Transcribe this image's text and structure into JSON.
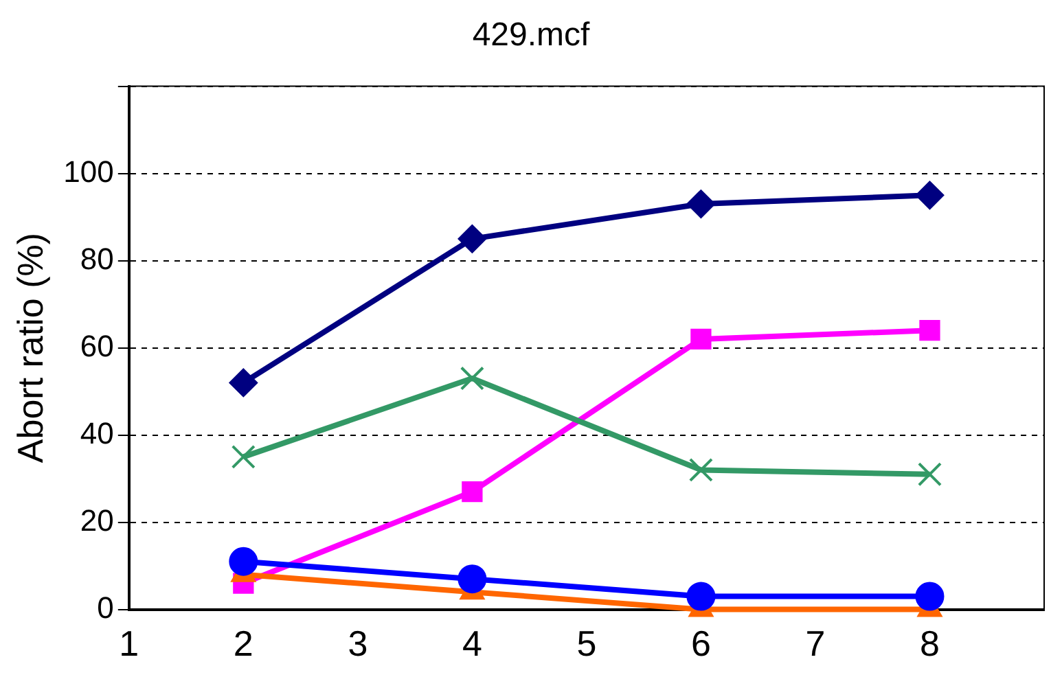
{
  "chart_data": {
    "type": "line",
    "title": "429.mcf",
    "ylabel": "Abort ratio (%)",
    "x": [
      2,
      4,
      6,
      8
    ],
    "xlim": [
      1,
      9
    ],
    "xticks": [
      1,
      2,
      3,
      4,
      5,
      6,
      7,
      8,
      {
        "value": 9,
        "label": null
      }
    ],
    "ylim": [
      0,
      120
    ],
    "yticks": [
      0,
      20,
      40,
      60,
      80,
      100,
      {
        "value": 120,
        "label": null
      }
    ],
    "grid": "y",
    "legend": false,
    "series": [
      {
        "color": "#000080",
        "marker": "diamond",
        "values": [
          52,
          85,
          93,
          95
        ]
      },
      {
        "color": "#ff00ff",
        "marker": "square",
        "values": [
          6,
          27,
          62,
          64
        ]
      },
      {
        "color": "#339966",
        "marker": "cross",
        "values": [
          35,
          53,
          32,
          31
        ]
      },
      {
        "color": "#ff6600",
        "marker": "triangle",
        "values": [
          8,
          4,
          0,
          0
        ]
      },
      {
        "color": "#0000ff",
        "marker": "circle",
        "values": [
          11,
          7,
          3,
          3
        ]
      }
    ]
  }
}
